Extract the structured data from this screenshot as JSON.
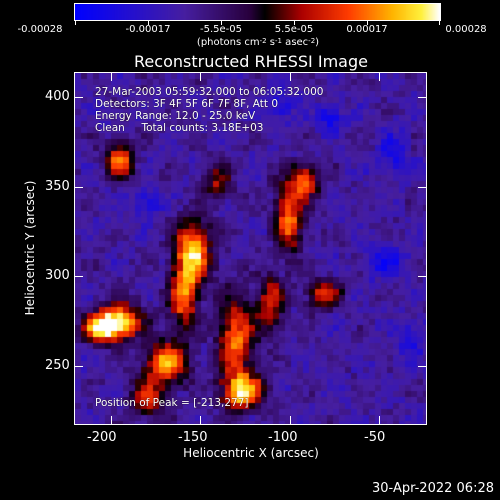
{
  "colorbar": {
    "labels": [
      "-0.00028",
      "-0.00017",
      "-5.5e-05",
      "5.5e-05",
      "0.00017",
      "0.00028"
    ],
    "units_prefix": "(photons cm",
    "units_exp1": "-2",
    "units_mid1": " s",
    "units_exp2": "-1",
    "units_mid2": " asec",
    "units_exp3": "-2",
    "units_suffix": ")"
  },
  "title": "Reconstructed RHESSI Image",
  "annotations": {
    "time_range": "27-Mar-2003 05:59:32.000 to 06:05:32.000",
    "detectors": "Detectors: 3F 4F 5F 6F 7F 8F, Att 0",
    "energy": "Energy Range: 12.0 - 25.0 keV",
    "method": "Clean     Total counts: 3.18E+03",
    "peak": "Position of Peak = [-213,277]"
  },
  "axes": {
    "xlabel": "Heliocentric X (arcsec)",
    "ylabel": "Heliocentric Y (arcsec)",
    "xticks": [
      "-200",
      "-150",
      "-100",
      "-50"
    ],
    "yticks": [
      "400",
      "350",
      "300",
      "250"
    ],
    "xlim": [
      -218,
      -22
    ],
    "ylim": [
      218,
      414
    ]
  },
  "timestamp": "30-Apr-2022 06:28",
  "colors": {
    "background": "#000000",
    "foreground": "#ffffff"
  }
}
